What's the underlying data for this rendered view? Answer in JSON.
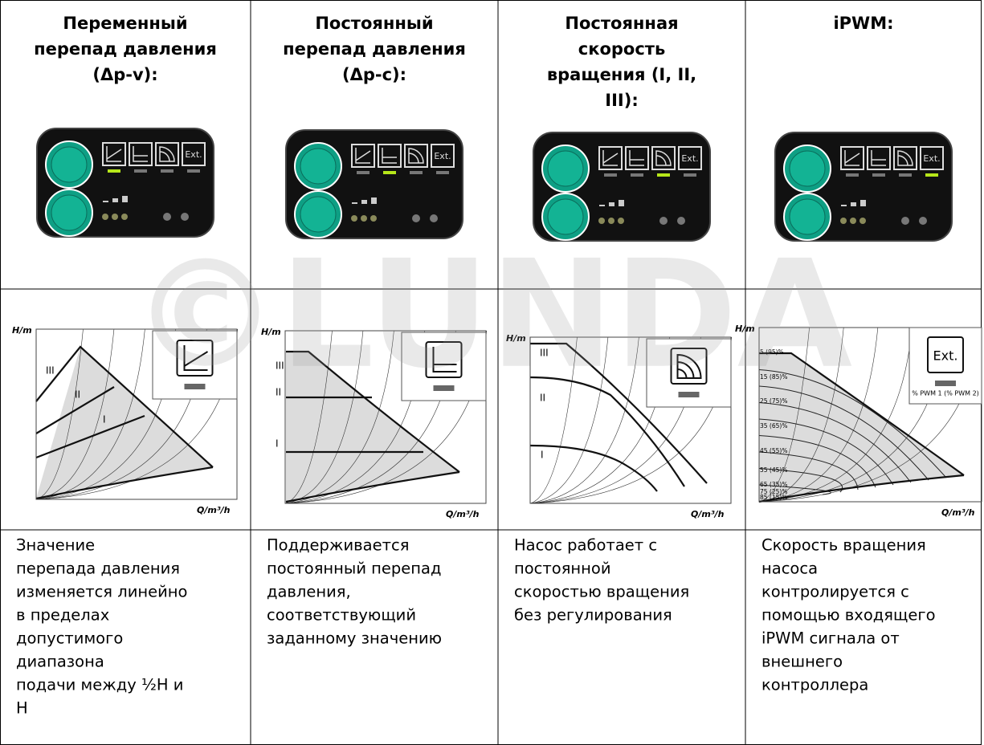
{
  "watermark": "©LUNDA",
  "table": {
    "headers": [
      [
        "Переменный",
        "перепад давления",
        "(Δp-v):"
      ],
      [
        "Постоянный",
        "перепад давления",
        "(Δp-c):"
      ],
      [
        "Постоянная",
        "скорость",
        "вращения (I, II,",
        "III):"
      ],
      [
        "iPWM:"
      ]
    ],
    "descriptions": [
      [
        "Значение",
        "перепада давления",
        "изменяется линейно",
        "в пределах",
        "допустимого",
        "диапазона",
        "подачи между ½Н и",
        "Н"
      ],
      [
        "Поддерживается",
        "постоянный перепад",
        "давления,",
        "соответствующий",
        "заданному значению"
      ],
      [
        "Насос работает с",
        "постоянной",
        "скоростью вращения",
        "без регулирования"
      ],
      [
        "Скорость вращения",
        "насоса",
        "контролируется с",
        "помощью входящего",
        "iPWM сигнала от",
        "внешнего",
        "контроллера"
      ]
    ]
  },
  "panel": {
    "ext_label": "Ext."
  },
  "charts": [
    {
      "y_label": "H/m",
      "x_label": "Q/m³/h",
      "curve_labels": [
        "III",
        "II",
        "I"
      ]
    },
    {
      "y_label": "H/m",
      "x_label": "Q/m³/h",
      "curve_labels": [
        "III",
        "II",
        "I"
      ]
    },
    {
      "y_label": "H/m",
      "x_label": "Q/m³/h",
      "curve_labels": [
        "III",
        "II",
        "I"
      ]
    },
    {
      "y_label": "H/m",
      "x_label": "Q/m³/h",
      "icon_text": "Ext.",
      "pwm_caption": "% PWM 1 (% PWM 2)",
      "pwm_labels": [
        "5 (95)%",
        "15 (85)%",
        "25 (75)%",
        "35 (65)%",
        "45 (55)%",
        "55 (45)%",
        "65 (35)%",
        "75 (25)%",
        "85 (15)%"
      ]
    }
  ]
}
